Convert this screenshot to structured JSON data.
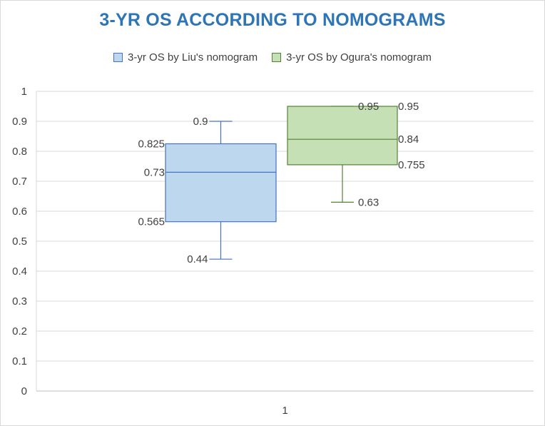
{
  "chart_data": {
    "type": "box",
    "title": "3-YR OS ACCORDING TO NOMOGRAMS",
    "xlabel": "",
    "ylabel": "",
    "categories": [
      "1"
    ],
    "ylim": [
      0,
      1
    ],
    "y_ticks": [
      "0",
      "0.1",
      "0.2",
      "0.3",
      "0.4",
      "0.5",
      "0.6",
      "0.7",
      "0.8",
      "0.9",
      "1"
    ],
    "grid": true,
    "legend_position": "top",
    "series": [
      {
        "name": "3-yr OS by Liu's nomogram",
        "min": 0.44,
        "q1": 0.565,
        "median": 0.73,
        "q3": 0.825,
        "max": 0.9,
        "labels": {
          "min": "0.44",
          "q1": "0.565",
          "median": "0.73",
          "q3": "0.825",
          "max": "0.9"
        },
        "fill": "#bdd7ee",
        "stroke": "#4472c4"
      },
      {
        "name": "3-yr OS by Ogura's nomogram",
        "min": 0.63,
        "q1": 0.755,
        "median": 0.84,
        "q3": 0.95,
        "max": 0.95,
        "labels": {
          "min": "0.63",
          "q1": "0.755",
          "median": "0.84",
          "q3": "0.95",
          "max": "0.95"
        },
        "fill": "#c5e0b4",
        "stroke": "#548235"
      }
    ]
  }
}
